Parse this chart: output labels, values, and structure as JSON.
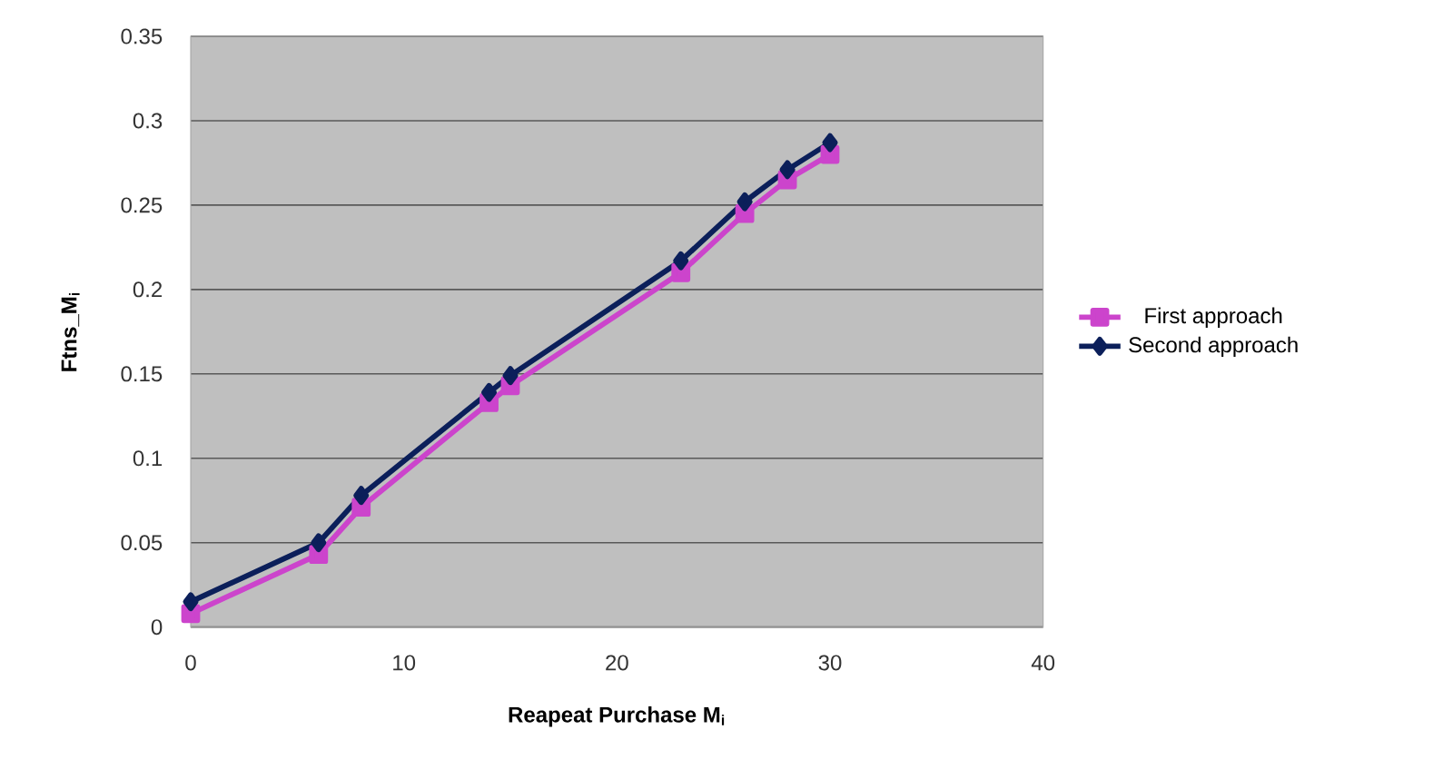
{
  "chart_data": {
    "type": "line",
    "xlabel": "Reapeat Purchase M$_{i}$",
    "ylabel": "Ftns_M$_{i}$",
    "xlim": [
      0,
      40
    ],
    "xticks": [
      0,
      10,
      20,
      30,
      40
    ],
    "ylim": [
      0,
      0.35
    ],
    "yticks": [
      0,
      0.05,
      0.1,
      0.15,
      0.2,
      0.25,
      0.3,
      0.35
    ],
    "x": [
      0,
      6,
      8,
      14,
      15,
      23,
      26,
      28,
      30
    ],
    "series": [
      {
        "name": "First approach",
        "color": "#cc44cc",
        "marker": "square",
        "values": [
          0.008,
          0.043,
          0.071,
          0.133,
          0.143,
          0.21,
          0.245,
          0.265,
          0.28
        ]
      },
      {
        "name": "Second approach",
        "color": "#0b1f5a",
        "marker": "diamond",
        "values": [
          0.015,
          0.05,
          0.078,
          0.139,
          0.149,
          0.217,
          0.252,
          0.271,
          0.287
        ]
      }
    ],
    "grid": "y",
    "legend": "right",
    "line_style": "solid"
  }
}
